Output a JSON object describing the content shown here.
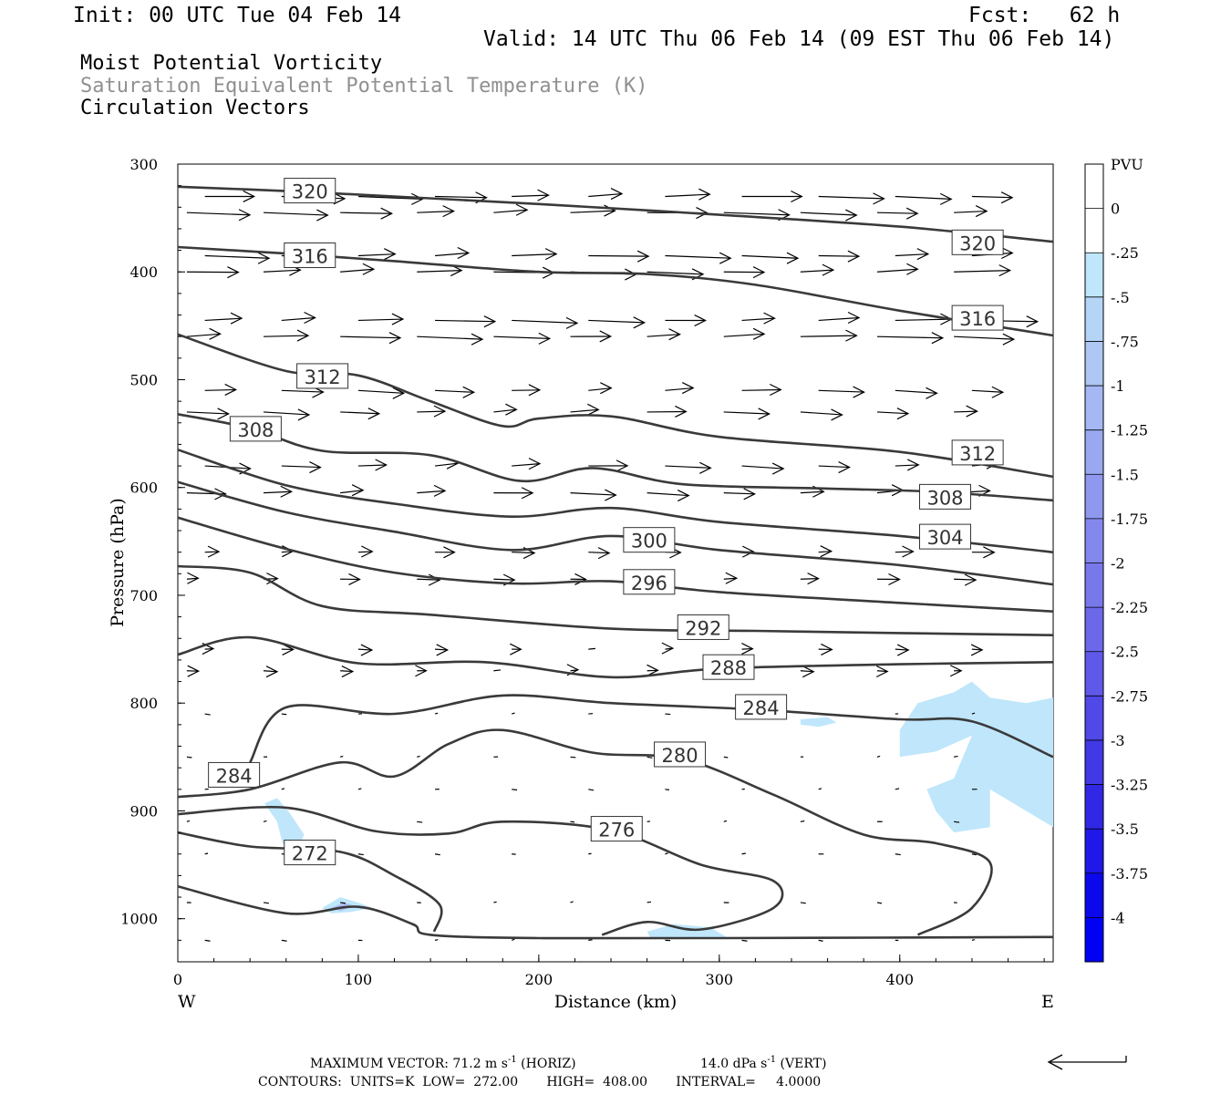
{
  "header": {
    "init": "Init: 00 UTC Tue 04 Feb 14",
    "fcst": "Fcst:   62 h",
    "valid": "Valid: 14 UTC Thu 06 Feb 14 (09 EST Thu 06 Feb 14)",
    "title1": "Moist Potential Vorticity",
    "title2": "Saturation Equivalent Potential Temperature (K)",
    "title3": "Circulation Vectors"
  },
  "chart_data": {
    "type": "cross-section contour",
    "xlabel": "Distance (km)",
    "ylabel": "Pressure (hPa)",
    "xlim": [
      0,
      485
    ],
    "ylim": [
      1040,
      300
    ],
    "y_scale": "linear, inverted",
    "x_ticks": [
      "0",
      "100",
      "200",
      "300",
      "400"
    ],
    "y_ticks": [
      "300",
      "400",
      "500",
      "600",
      "700",
      "800",
      "900",
      "1000"
    ],
    "x_end_labels": {
      "left": "W",
      "right": "E"
    },
    "contour_color": "#3a3a3a",
    "theta_es_contours": [
      {
        "label": "320",
        "label_at": [
          60,
          325
        ],
        "points": [
          [
            0,
            321
          ],
          [
            60,
            325
          ],
          [
            120,
            330
          ],
          [
            200,
            337
          ],
          [
            300,
            347
          ],
          [
            400,
            358
          ],
          [
            485,
            372
          ]
        ]
      },
      {
        "label": "320",
        "label_at": [
          430,
          373
        ],
        "points": []
      },
      {
        "label": "316",
        "label_at": [
          60,
          385
        ],
        "points": [
          [
            0,
            377
          ],
          [
            60,
            383
          ],
          [
            120,
            390
          ],
          [
            200,
            400
          ],
          [
            260,
            402
          ],
          [
            320,
            412
          ],
          [
            400,
            436
          ],
          [
            485,
            459
          ]
        ]
      },
      {
        "label": "316",
        "label_at": [
          430,
          443
        ],
        "points": []
      },
      {
        "label": "312",
        "label_at": [
          67,
          497
        ],
        "points": [
          [
            0,
            458
          ],
          [
            60,
            492
          ],
          [
            100,
            496
          ],
          [
            140,
            520
          ],
          [
            180,
            543
          ],
          [
            200,
            536
          ],
          [
            240,
            534
          ],
          [
            300,
            553
          ],
          [
            400,
            567
          ],
          [
            485,
            590
          ]
        ]
      },
      {
        "label": "312",
        "label_at": [
          430,
          568
        ],
        "points": []
      },
      {
        "label": "308",
        "label_at": [
          30,
          546
        ],
        "points": [
          [
            0,
            532
          ],
          [
            40,
            545
          ],
          [
            80,
            566
          ],
          [
            140,
            570
          ],
          [
            190,
            594
          ],
          [
            230,
            582
          ],
          [
            280,
            597
          ],
          [
            360,
            601
          ],
          [
            420,
            604
          ],
          [
            485,
            612
          ]
        ]
      },
      {
        "label": "308",
        "label_at": [
          412,
          609
        ],
        "points": []
      },
      {
        "label": "304",
        "label_at": [
          412,
          646
        ],
        "points": [
          [
            0,
            565
          ],
          [
            60,
            598
          ],
          [
            120,
            615
          ],
          [
            185,
            627
          ],
          [
            240,
            619
          ],
          [
            300,
            632
          ],
          [
            400,
            645
          ],
          [
            485,
            660
          ]
        ]
      },
      {
        "label": "300",
        "label_at": [
          248,
          649
        ],
        "points": [
          [
            0,
            595
          ],
          [
            60,
            623
          ],
          [
            120,
            641
          ],
          [
            185,
            658
          ],
          [
            240,
            645
          ],
          [
            300,
            658
          ],
          [
            400,
            672
          ],
          [
            485,
            690
          ]
        ]
      },
      {
        "label": "296",
        "label_at": [
          248,
          688
        ],
        "points": [
          [
            0,
            628
          ],
          [
            60,
            657
          ],
          [
            120,
            679
          ],
          [
            185,
            689
          ],
          [
            240,
            687
          ],
          [
            300,
            697
          ],
          [
            400,
            707
          ],
          [
            485,
            715
          ]
        ]
      },
      {
        "label": "292",
        "label_at": [
          278,
          730
        ],
        "points": [
          [
            0,
            673
          ],
          [
            40,
            679
          ],
          [
            80,
            710
          ],
          [
            140,
            718
          ],
          [
            240,
            731
          ],
          [
            320,
            733
          ],
          [
            400,
            735
          ],
          [
            485,
            737
          ]
        ]
      },
      {
        "label": "288",
        "label_at": [
          292,
          767
        ],
        "points": [
          [
            0,
            755
          ],
          [
            40,
            739
          ],
          [
            100,
            763
          ],
          [
            170,
            762
          ],
          [
            240,
            776
          ],
          [
            300,
            768
          ],
          [
            400,
            764
          ],
          [
            485,
            762
          ]
        ]
      },
      {
        "label": "284",
        "label_at": [
          310,
          804
        ],
        "points": [
          [
            40,
            855
          ],
          [
            60,
            804
          ],
          [
            120,
            810
          ],
          [
            180,
            793
          ],
          [
            240,
            800
          ],
          [
            320,
            806
          ],
          [
            400,
            815
          ],
          [
            440,
            817
          ],
          [
            485,
            850
          ]
        ]
      },
      {
        "label": "284",
        "label_at": [
          18,
          867
        ],
        "points": []
      },
      {
        "label": "280",
        "label_at": [
          265,
          848
        ],
        "points": [
          [
            0,
            887
          ],
          [
            40,
            880
          ],
          [
            90,
            855
          ],
          [
            120,
            868
          ],
          [
            150,
            838
          ],
          [
            180,
            825
          ],
          [
            230,
            846
          ],
          [
            280,
            852
          ],
          [
            330,
            885
          ],
          [
            380,
            922
          ],
          [
            420,
            930
          ],
          [
            450,
            948
          ],
          [
            440,
            990
          ],
          [
            410,
            1015
          ]
        ]
      },
      {
        "label": "276",
        "label_at": [
          230,
          917
        ],
        "points": [
          [
            0,
            903
          ],
          [
            60,
            897
          ],
          [
            110,
            919
          ],
          [
            150,
            921
          ],
          [
            180,
            910
          ],
          [
            240,
            918
          ],
          [
            290,
            950
          ],
          [
            330,
            965
          ],
          [
            330,
            990
          ],
          [
            290,
            1010
          ],
          [
            260,
            1003
          ],
          [
            235,
            1015
          ]
        ]
      },
      {
        "label": "272",
        "label_at": [
          60,
          939
        ],
        "points": [
          [
            0,
            920
          ],
          [
            40,
            933
          ],
          [
            90,
            938
          ],
          [
            120,
            960
          ],
          [
            145,
            987
          ],
          [
            142,
            1012
          ]
        ]
      },
      {
        "label": "",
        "label_at": null,
        "points": [
          [
            0,
            970
          ],
          [
            60,
            995
          ],
          [
            100,
            989
          ],
          [
            130,
            1005
          ],
          [
            140,
            1015
          ],
          [
            200,
            1018
          ],
          [
            300,
            1018
          ],
          [
            485,
            1017
          ]
        ]
      }
    ],
    "vector_rows_hpa": [
      330,
      345,
      385,
      400,
      445,
      460,
      510,
      530,
      580,
      605,
      660,
      685,
      750,
      770,
      810,
      850,
      880,
      910,
      940,
      985,
      1020
    ],
    "mpv_shading_legend": {
      "unit": "PVU",
      "labels": [
        "0",
        "-.25",
        "-.5",
        "-.75",
        "-1",
        "-1.25",
        "-1.5",
        "-1.75",
        "-2",
        "-2.25",
        "-2.5",
        "-2.75",
        "-3",
        "-3.25",
        "-3.5",
        "-3.75",
        "-4"
      ],
      "colors": [
        "#ffffff",
        "#ffffff",
        "#bfe6fb",
        "#b5d5f7",
        "#aec7f4",
        "#a5b8f3",
        "#9aa8f1",
        "#8f98ef",
        "#8488ed",
        "#7878eb",
        "#6c68e9",
        "#5f58e8",
        "#5048e7",
        "#4138e6",
        "#3128e6",
        "#2018e8",
        "#0c08ec",
        "#0000f4"
      ]
    },
    "mpv_regions": [
      {
        "value": "-.25",
        "color": "#bfe6fb",
        "points": [
          [
            400,
            825
          ],
          [
            410,
            800
          ],
          [
            430,
            790
          ],
          [
            440,
            780
          ],
          [
            450,
            795
          ],
          [
            470,
            800
          ],
          [
            485,
            795
          ],
          [
            485,
            915
          ],
          [
            470,
            900
          ],
          [
            450,
            880
          ],
          [
            450,
            915
          ],
          [
            430,
            920
          ],
          [
            420,
            900
          ],
          [
            415,
            880
          ],
          [
            430,
            870
          ],
          [
            440,
            830
          ],
          [
            420,
            845
          ],
          [
            400,
            850
          ]
        ]
      },
      {
        "value": "-.25",
        "color": "#bfe6fb",
        "points": [
          [
            345,
            815
          ],
          [
            360,
            813
          ],
          [
            365,
            818
          ],
          [
            355,
            822
          ],
          [
            345,
            820
          ]
        ]
      },
      {
        "value": "-.25",
        "color": "#bfe6fb",
        "points": [
          [
            48,
            893
          ],
          [
            55,
            888
          ],
          [
            62,
            902
          ],
          [
            70,
            922
          ],
          [
            65,
            940
          ],
          [
            58,
            930
          ],
          [
            55,
            910
          ]
        ]
      },
      {
        "value": "-.25",
        "color": "#bfe6fb",
        "points": [
          [
            80,
            990
          ],
          [
            90,
            980
          ],
          [
            100,
            985
          ],
          [
            108,
            990
          ],
          [
            95,
            994
          ],
          [
            85,
            995
          ]
        ]
      },
      {
        "value": "-.75",
        "color": "#aebff5",
        "points": [
          [
            85,
            990
          ],
          [
            92,
            985
          ],
          [
            98,
            988
          ],
          [
            90,
            993
          ]
        ]
      },
      {
        "value": "-.25",
        "color": "#bfe6fb",
        "points": [
          [
            260,
            1012
          ],
          [
            275,
            1005
          ],
          [
            295,
            1008
          ],
          [
            305,
            1018
          ],
          [
            262,
            1018
          ]
        ]
      }
    ]
  },
  "footer": {
    "max_vector": "MAXIMUM VECTOR:  71.2 m s",
    "sup1": "-1",
    "horiz": " (HORIZ)",
    "vert_val": "14.0 dPa s",
    "sup2": "-1",
    "vert": " (VERT)",
    "contours": "CONTOURS:  UNITS=K  LOW=  272.00       HIGH=  408.00       INTERVAL=     4.0000"
  }
}
